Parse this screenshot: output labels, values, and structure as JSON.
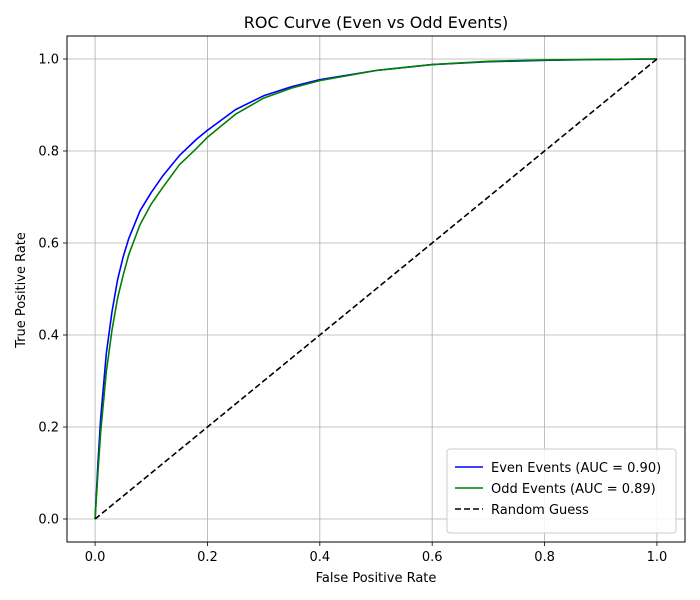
{
  "chart_data": {
    "type": "line",
    "title": "ROC Curve (Even vs Odd Events)",
    "xlabel": "False Positive Rate",
    "ylabel": "True Positive Rate",
    "xlim": [
      -0.05,
      1.05
    ],
    "ylim": [
      -0.05,
      1.05
    ],
    "xticks": [
      0.0,
      0.2,
      0.4,
      0.6,
      0.8,
      1.0
    ],
    "xtick_labels": [
      "0.0",
      "0.2",
      "0.4",
      "0.6",
      "0.8",
      "1.0"
    ],
    "yticks": [
      0.0,
      0.2,
      0.4,
      0.6,
      0.8,
      1.0
    ],
    "ytick_labels": [
      "0.0",
      "0.2",
      "0.4",
      "0.6",
      "0.8",
      "1.0"
    ],
    "grid": true,
    "legend_position": "lower-right",
    "series": [
      {
        "name": "Even Events (AUC = 0.90)",
        "color": "#0000ff",
        "style": "solid",
        "x": [
          0.0,
          0.005,
          0.01,
          0.02,
          0.03,
          0.04,
          0.05,
          0.06,
          0.08,
          0.1,
          0.12,
          0.15,
          0.18,
          0.2,
          0.25,
          0.3,
          0.35,
          0.4,
          0.5,
          0.6,
          0.7,
          0.8,
          0.9,
          1.0
        ],
        "y": [
          0.0,
          0.12,
          0.22,
          0.36,
          0.45,
          0.52,
          0.57,
          0.61,
          0.67,
          0.71,
          0.745,
          0.79,
          0.825,
          0.845,
          0.89,
          0.92,
          0.94,
          0.955,
          0.975,
          0.988,
          0.994,
          0.997,
          0.999,
          1.0
        ]
      },
      {
        "name": "Odd Events (AUC = 0.89)",
        "color": "#008000",
        "style": "solid",
        "x": [
          0.0,
          0.005,
          0.01,
          0.02,
          0.03,
          0.04,
          0.05,
          0.06,
          0.08,
          0.1,
          0.12,
          0.15,
          0.18,
          0.2,
          0.25,
          0.3,
          0.35,
          0.4,
          0.5,
          0.6,
          0.7,
          0.8,
          0.9,
          1.0
        ],
        "y": [
          0.0,
          0.1,
          0.19,
          0.32,
          0.41,
          0.48,
          0.53,
          0.575,
          0.64,
          0.685,
          0.72,
          0.77,
          0.805,
          0.83,
          0.88,
          0.915,
          0.937,
          0.953,
          0.975,
          0.988,
          0.995,
          0.998,
          0.999,
          1.0
        ]
      },
      {
        "name": "Random Guess",
        "color": "#000000",
        "style": "dashed",
        "x": [
          0.0,
          1.0
        ],
        "y": [
          0.0,
          1.0
        ]
      }
    ]
  }
}
